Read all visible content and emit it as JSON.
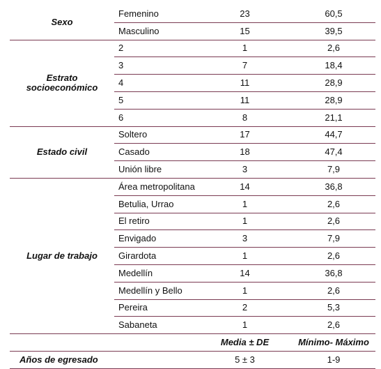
{
  "groups": [
    {
      "label": "Sexo",
      "rows": [
        {
          "cat": "Femenino",
          "n": "23",
          "pct": "60,5"
        },
        {
          "cat": "Masculino",
          "n": "15",
          "pct": "39,5"
        }
      ]
    },
    {
      "label": "Estrato socioeconómico",
      "rows": [
        {
          "cat": "2",
          "n": "1",
          "pct": "2,6"
        },
        {
          "cat": "3",
          "n": "7",
          "pct": "18,4"
        },
        {
          "cat": "4",
          "n": "11",
          "pct": "28,9"
        },
        {
          "cat": "5",
          "n": "11",
          "pct": "28,9"
        },
        {
          "cat": "6",
          "n": "8",
          "pct": "21,1"
        }
      ]
    },
    {
      "label": "Estado civil",
      "rows": [
        {
          "cat": "Soltero",
          "n": "17",
          "pct": "44,7"
        },
        {
          "cat": "Casado",
          "n": "18",
          "pct": "47,4"
        },
        {
          "cat": "Unión libre",
          "n": "3",
          "pct": "7,9"
        }
      ]
    },
    {
      "label": "Lugar de trabajo",
      "rows": [
        {
          "cat": "Área metropolitana",
          "n": "14",
          "pct": "36,8"
        },
        {
          "cat": "Betulia, Urrao",
          "n": "1",
          "pct": "2,6"
        },
        {
          "cat": "El retiro",
          "n": "1",
          "pct": "2,6"
        },
        {
          "cat": "Envigado",
          "n": "3",
          "pct": "7,9"
        },
        {
          "cat": "Girardota",
          "n": "1",
          "pct": "2,6"
        },
        {
          "cat": "Medellín",
          "n": "14",
          "pct": "36,8"
        },
        {
          "cat": "Medellín y Bello",
          "n": "1",
          "pct": "2,6"
        },
        {
          "cat": "Pereira",
          "n": "2",
          "pct": "5,3"
        },
        {
          "cat": "Sabaneta",
          "n": "1",
          "pct": "2,6"
        }
      ]
    }
  ],
  "summary": {
    "header_mean": "Media ± DE",
    "header_range": "Mínimo- Máximo",
    "label": "Años de egresado",
    "mean": "5 ± 3",
    "range": "1-9"
  }
}
